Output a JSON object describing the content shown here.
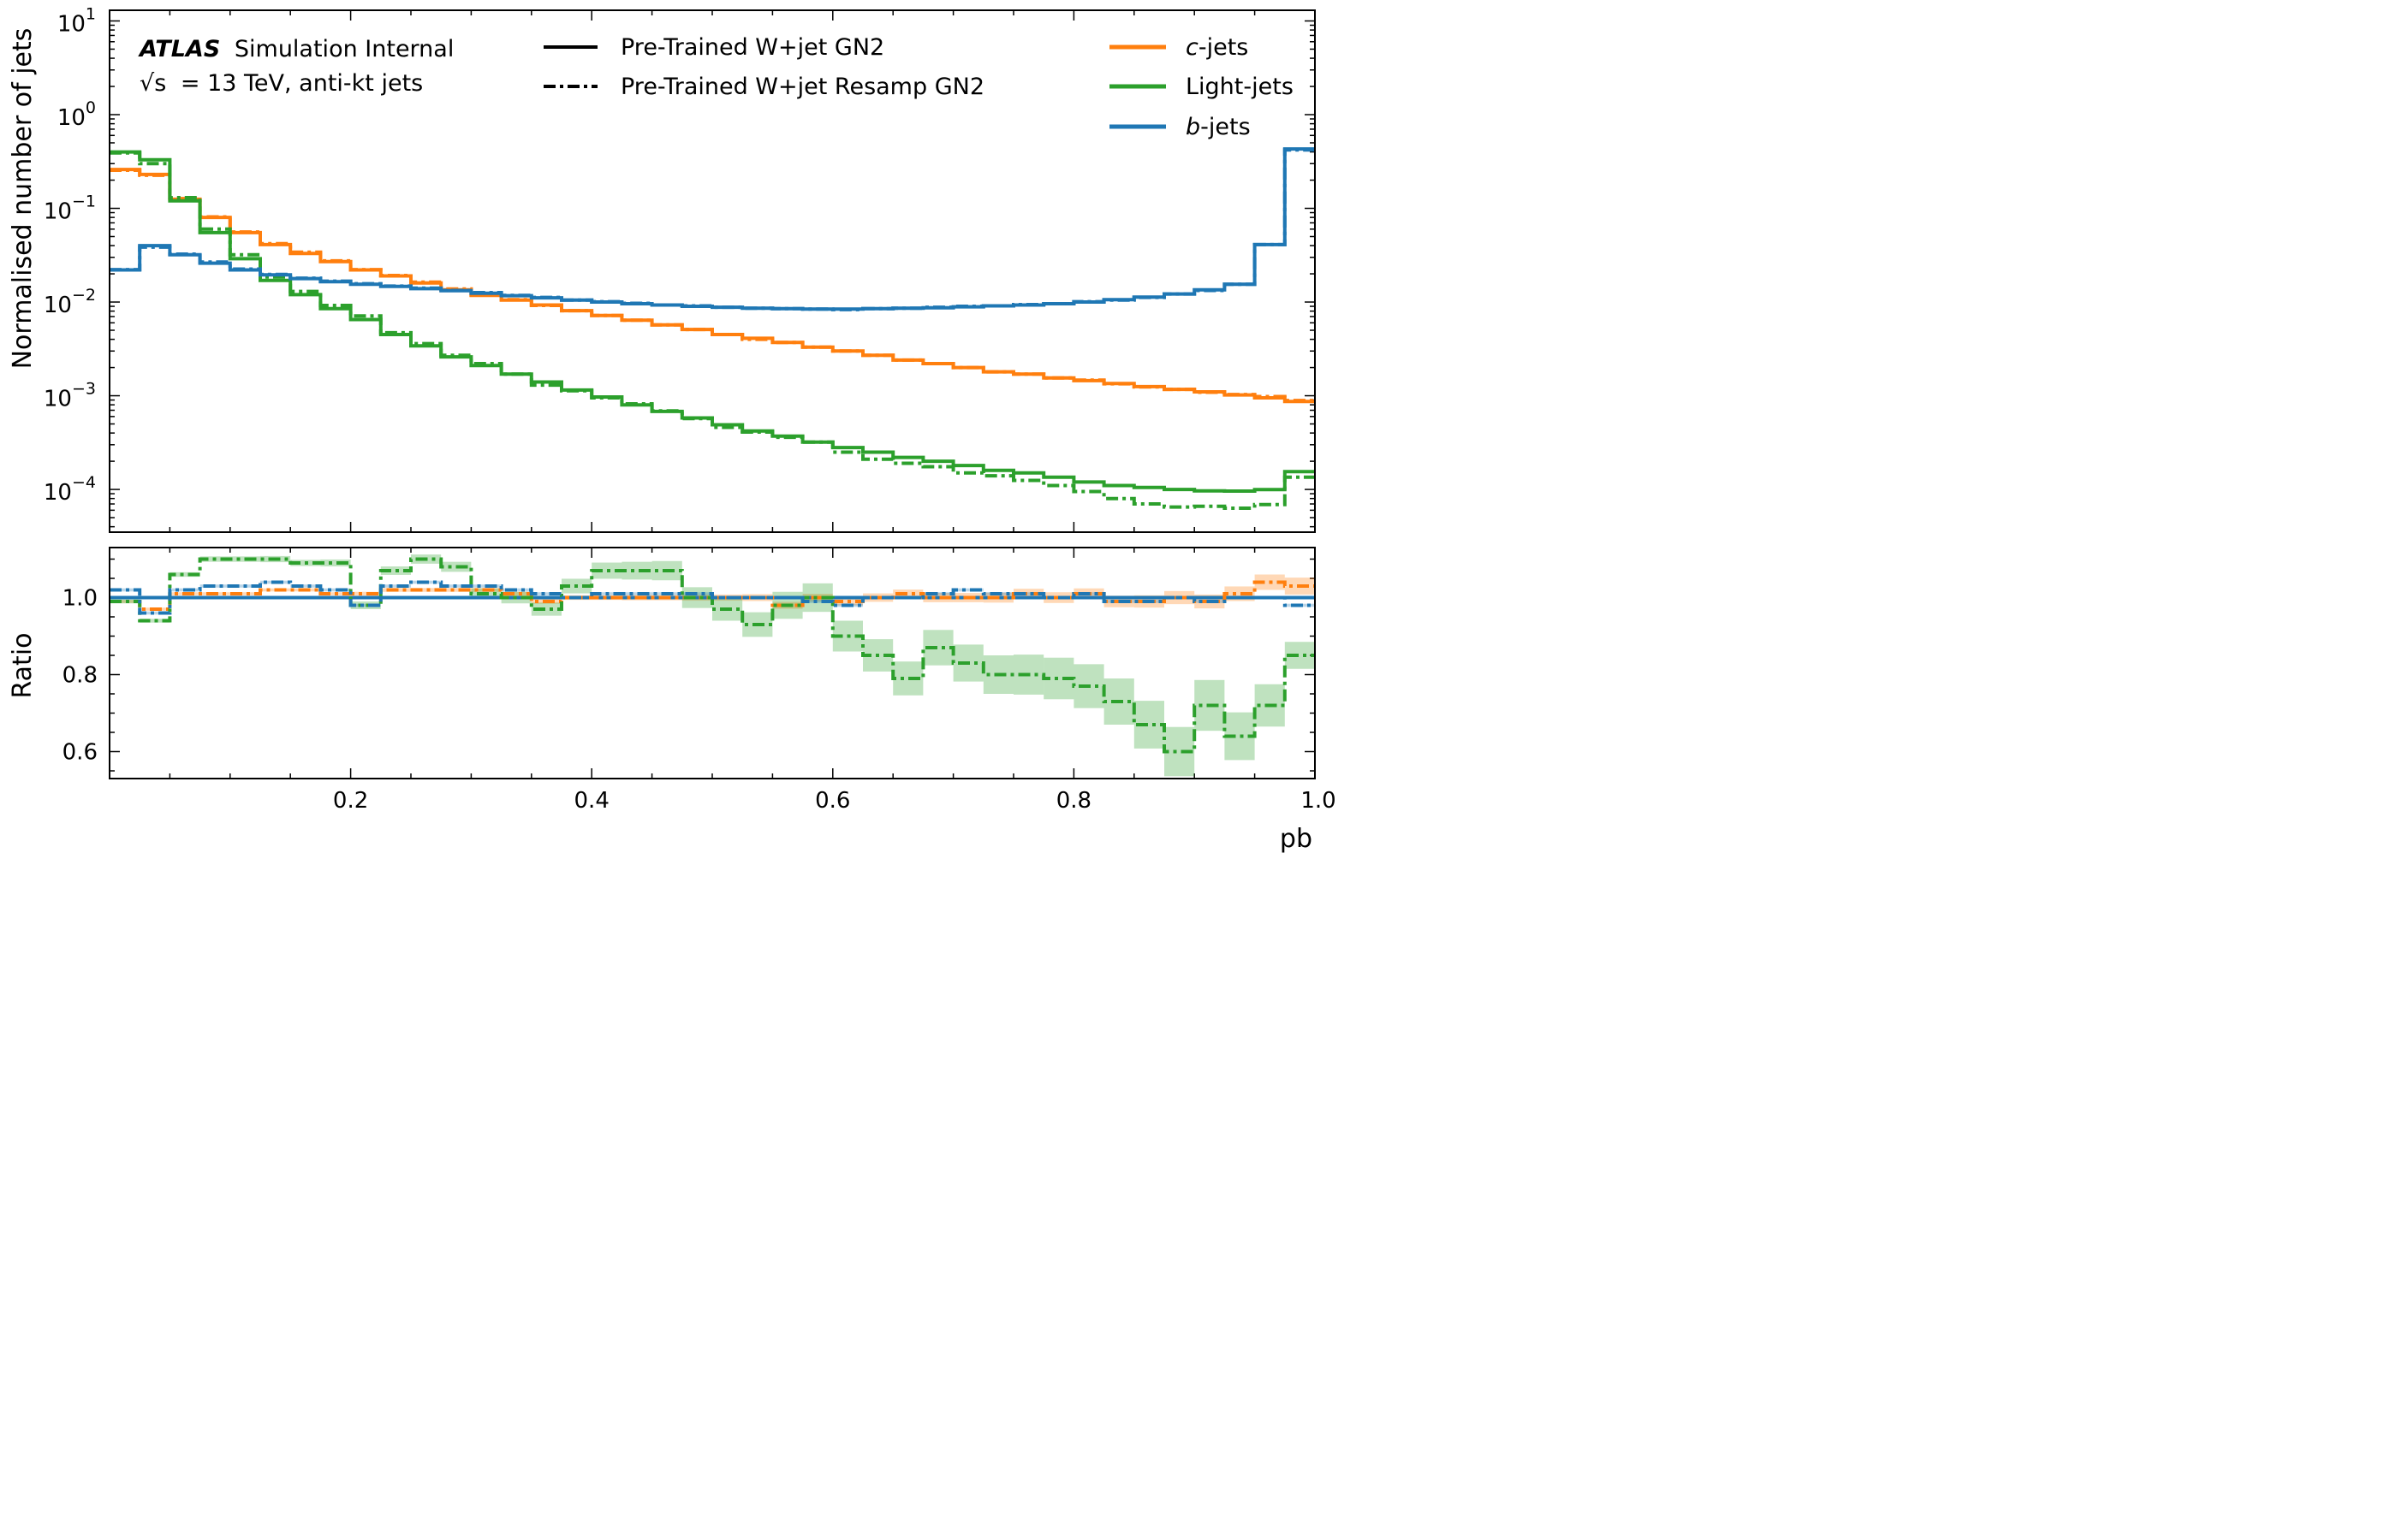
{
  "annotation": {
    "experiment": "ATLAS",
    "status": "Simulation Internal",
    "energy_prefix": "√s",
    "energy_value": "= 13 TeV, anti-kt jets"
  },
  "chart_data": {
    "type": "step-histogram",
    "x": {
      "label": "pb",
      "range": [
        0.0,
        1.0
      ],
      "tick_labels": [
        "0.2",
        "0.4",
        "0.6",
        "0.8",
        "1.0"
      ],
      "bin_edges": [
        0.0,
        0.025,
        0.05,
        0.075,
        0.1,
        0.125,
        0.15,
        0.175,
        0.2,
        0.225,
        0.25,
        0.275,
        0.3,
        0.325,
        0.35,
        0.375,
        0.4,
        0.425,
        0.45,
        0.475,
        0.5,
        0.525,
        0.55,
        0.575,
        0.6,
        0.625,
        0.65,
        0.675,
        0.7,
        0.725,
        0.75,
        0.775,
        0.8,
        0.825,
        0.85,
        0.875,
        0.9,
        0.925,
        0.95,
        0.975,
        1.0
      ]
    },
    "top_panel": {
      "ylabel": "Normalised number of jets",
      "yscale": "log",
      "ylim": [
        3.5e-05,
        13
      ],
      "ytick_labels": [
        {
          "base": "10",
          "exp": "1"
        },
        {
          "base": "10",
          "exp": "0"
        },
        {
          "base": "10",
          "exp": "−1"
        },
        {
          "base": "10",
          "exp": "−2"
        },
        {
          "base": "10",
          "exp": "−3"
        },
        {
          "base": "10",
          "exp": "−4"
        }
      ],
      "series": [
        {
          "name": "c-jets",
          "color": "#ff7f0e",
          "style": "solid",
          "values": [
            0.26,
            0.23,
            0.125,
            0.08,
            0.055,
            0.041,
            0.033,
            0.027,
            0.022,
            0.019,
            0.016,
            0.0135,
            0.0118,
            0.0105,
            0.0093,
            0.0081,
            0.0072,
            0.0064,
            0.0057,
            0.0051,
            0.0045,
            0.0041,
            0.0037,
            0.0033,
            0.003,
            0.0027,
            0.0024,
            0.0022,
            0.002,
            0.0018,
            0.0017,
            0.00155,
            0.00145,
            0.00135,
            0.00125,
            0.00117,
            0.0011,
            0.00102,
            0.00095,
            0.00087
          ]
        },
        {
          "name": "c-jets Resamp",
          "color": "#ff7f0e",
          "style": "dashdot",
          "values": [
            0.255,
            0.225,
            0.127,
            0.081,
            0.056,
            0.042,
            0.034,
            0.0275,
            0.0222,
            0.0192,
            0.0163,
            0.0138,
            0.012,
            0.0106,
            0.0092,
            0.0081,
            0.0072,
            0.0064,
            0.0057,
            0.0051,
            0.0045,
            0.004,
            0.0037,
            0.0033,
            0.003,
            0.0027,
            0.0024,
            0.0022,
            0.002,
            0.0018,
            0.0017,
            0.00155,
            0.00147,
            0.00134,
            0.00124,
            0.00117,
            0.00109,
            0.00103,
            0.00098,
            0.00089
          ]
        },
        {
          "name": "Light-jets",
          "color": "#2ca02c",
          "style": "solid",
          "values": [
            0.4,
            0.33,
            0.12,
            0.055,
            0.029,
            0.017,
            0.012,
            0.0085,
            0.0065,
            0.0045,
            0.0034,
            0.0026,
            0.0021,
            0.0017,
            0.0014,
            0.00115,
            0.00097,
            0.0008,
            0.00068,
            0.00058,
            0.00049,
            0.00042,
            0.00037,
            0.00032,
            0.00028,
            0.00025,
            0.00022,
            0.0002,
            0.00018,
            0.00016,
            0.00015,
            0.000135,
            0.00012,
            0.00011,
            0.000105,
            0.0001,
            9.65e-05,
            9.6e-05,
            9.95e-05,
            0.000155
          ]
        },
        {
          "name": "Light-jets Resamp",
          "color": "#2ca02c",
          "style": "dashdot",
          "values": [
            0.39,
            0.3,
            0.13,
            0.06,
            0.032,
            0.0185,
            0.013,
            0.0092,
            0.0071,
            0.0047,
            0.0036,
            0.0027,
            0.0022,
            0.0017,
            0.0013,
            0.00113,
            0.00095,
            0.00082,
            0.00069,
            0.00057,
            0.00046,
            0.00041,
            0.00036,
            0.00032,
            0.00025,
            0.00021,
            0.00019,
            0.000175,
            0.00015,
            0.00014,
            0.000125,
            0.00011,
            9.5e-05,
            8e-05,
            7e-05,
            6.5e-05,
            6.6e-05,
            6.3e-05,
            6.9e-05,
            0.000135
          ]
        },
        {
          "name": "b-jets",
          "color": "#1f77b4",
          "style": "solid",
          "values": [
            0.022,
            0.04,
            0.032,
            0.026,
            0.022,
            0.0195,
            0.0178,
            0.0165,
            0.0155,
            0.0147,
            0.0139,
            0.0132,
            0.0124,
            0.0117,
            0.0111,
            0.0105,
            0.01,
            0.0096,
            0.0093,
            0.009,
            0.0088,
            0.0086,
            0.0085,
            0.0084,
            0.0084,
            0.0085,
            0.0086,
            0.0087,
            0.0089,
            0.0091,
            0.0093,
            0.0096,
            0.01,
            0.0106,
            0.0113,
            0.0122,
            0.0135,
            0.0155,
            0.041,
            0.43
          ]
        },
        {
          "name": "b-jets Resamp",
          "color": "#1f77b4",
          "style": "dashdot",
          "values": [
            0.0222,
            0.0385,
            0.0325,
            0.0267,
            0.0225,
            0.0197,
            0.018,
            0.0167,
            0.0157,
            0.0148,
            0.0141,
            0.0133,
            0.0126,
            0.0118,
            0.0112,
            0.0105,
            0.0101,
            0.0097,
            0.0093,
            0.0091,
            0.0088,
            0.0086,
            0.0085,
            0.0084,
            0.0083,
            0.0085,
            0.0086,
            0.0088,
            0.009,
            0.0091,
            0.0094,
            0.0096,
            0.0101,
            0.0105,
            0.0112,
            0.0122,
            0.0133,
            0.0155,
            0.041,
            0.42
          ]
        }
      ]
    },
    "ratio_panel": {
      "ylabel": "Ratio",
      "ylim": [
        0.53,
        1.13
      ],
      "ytick_labels": [
        "1.0",
        "0.8",
        "0.6"
      ],
      "series": [
        {
          "name": "c-jets ratio",
          "color": "#ff7f0e",
          "style": "dashdot",
          "values": [
            0.99,
            0.97,
            1.01,
            1.01,
            1.01,
            1.02,
            1.02,
            1.01,
            1.01,
            1.02,
            1.02,
            1.02,
            1.02,
            1.01,
            0.99,
            1.0,
            1.0,
            1.0,
            1.0,
            1.0,
            1.0,
            1.0,
            0.98,
            1.0,
            0.99,
            1.0,
            1.01,
            1.0,
            1.0,
            1.0,
            1.01,
            1.0,
            1.01,
            0.99,
            0.99,
            1.0,
            0.99,
            1.01,
            1.04,
            1.03
          ],
          "band_halfwidth": [
            0.004,
            0.004,
            0.004,
            0.004,
            0.004,
            0.004,
            0.004,
            0.004,
            0.005,
            0.005,
            0.005,
            0.005,
            0.005,
            0.005,
            0.006,
            0.006,
            0.006,
            0.007,
            0.007,
            0.008,
            0.008,
            0.009,
            0.009,
            0.01,
            0.01,
            0.011,
            0.011,
            0.012,
            0.012,
            0.013,
            0.013,
            0.014,
            0.014,
            0.015,
            0.016,
            0.017,
            0.018,
            0.019,
            0.02,
            0.022
          ]
        },
        {
          "name": "Light-jets ratio",
          "color": "#2ca02c",
          "style": "dashdot",
          "values": [
            0.99,
            0.94,
            1.06,
            1.1,
            1.1,
            1.1,
            1.09,
            1.09,
            0.98,
            1.07,
            1.1,
            1.08,
            1.01,
            1.0,
            0.97,
            1.03,
            1.07,
            1.07,
            1.07,
            1.0,
            0.97,
            0.93,
            0.98,
            1.0,
            0.9,
            0.85,
            0.79,
            0.87,
            0.83,
            0.8,
            0.8,
            0.79,
            0.77,
            0.73,
            0.67,
            0.6,
            0.72,
            0.64,
            0.72,
            0.85
          ],
          "band_halfwidth": [
            0.005,
            0.005,
            0.006,
            0.007,
            0.007,
            0.008,
            0.008,
            0.009,
            0.01,
            0.011,
            0.012,
            0.013,
            0.014,
            0.015,
            0.017,
            0.019,
            0.021,
            0.023,
            0.025,
            0.027,
            0.03,
            0.032,
            0.035,
            0.037,
            0.04,
            0.042,
            0.044,
            0.046,
            0.048,
            0.05,
            0.052,
            0.054,
            0.057,
            0.06,
            0.062,
            0.064,
            0.066,
            0.062,
            0.055,
            0.035
          ]
        },
        {
          "name": "b-jets ratio",
          "color": "#1f77b4",
          "style": "dashdot",
          "values": [
            1.02,
            0.96,
            1.02,
            1.03,
            1.03,
            1.04,
            1.03,
            1.02,
            0.98,
            1.03,
            1.04,
            1.03,
            1.03,
            1.02,
            1.01,
            1.0,
            1.01,
            1.01,
            1.01,
            1.01,
            1.0,
            1.0,
            1.0,
            0.99,
            0.98,
            1.0,
            1.0,
            1.01,
            1.02,
            1.01,
            1.01,
            1.0,
            1.01,
            0.99,
            0.99,
            1.0,
            0.99,
            1.0,
            1.0,
            0.98
          ],
          "band_halfwidth": [
            0.004,
            0.004,
            0.004,
            0.004,
            0.004,
            0.004,
            0.004,
            0.004,
            0.004,
            0.004,
            0.004,
            0.004,
            0.004,
            0.004,
            0.004,
            0.004,
            0.004,
            0.004,
            0.004,
            0.004,
            0.004,
            0.004,
            0.004,
            0.004,
            0.004,
            0.004,
            0.004,
            0.004,
            0.004,
            0.004,
            0.004,
            0.004,
            0.004,
            0.004,
            0.004,
            0.004,
            0.004,
            0.004,
            0.004,
            0.004
          ]
        }
      ],
      "reference_line": {
        "value": 1.0,
        "color": "#1f77b4"
      }
    },
    "legend": {
      "style_entries": [
        {
          "label": "Pre-Trained W+jet GN2",
          "style": "solid"
        },
        {
          "label": "Pre-Trained W+jet Resamp GN2",
          "style": "dashdot"
        }
      ],
      "flavour_entries": [
        {
          "italic": "c",
          "suffix": "-jets",
          "color": "#ff7f0e"
        },
        {
          "italic": "",
          "suffix": "Light-jets",
          "color": "#2ca02c"
        },
        {
          "italic": "b",
          "suffix": "-jets",
          "color": "#1f77b4"
        }
      ],
      "placement": "top"
    }
  }
}
